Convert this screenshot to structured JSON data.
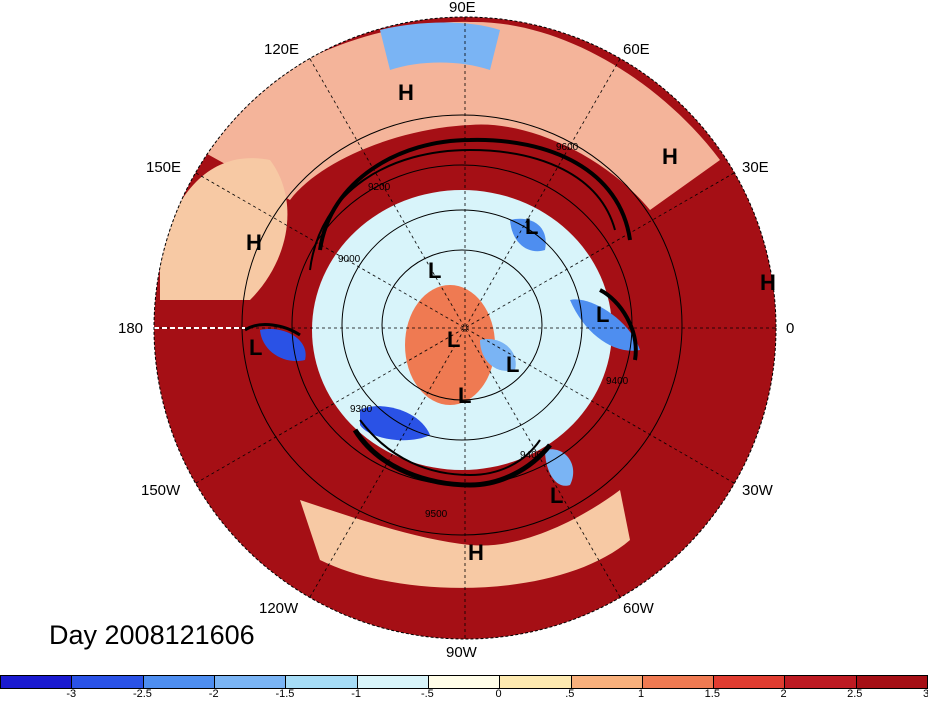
{
  "map": {
    "hemisphere": "northern",
    "projection": "polar stereographic",
    "pole_label": "",
    "contour_values_shown": [
      "9200",
      "9000",
      "9300",
      "9400",
      "9400",
      "9500",
      "9600"
    ],
    "colors": {
      "ocean_hot": "#a50f15",
      "background": "#ffffff"
    }
  },
  "longitude_labels": {
    "top": "90E",
    "lon120e": "120E",
    "lon60e": "60E",
    "lon150e": "150E",
    "lon30e": "30E",
    "left": "180",
    "right": "0",
    "lon150w": "150W",
    "lon30w": "30W",
    "lon120w": "120W",
    "lon60w": "60W",
    "bottom": "90W"
  },
  "pressure_centers": [
    {
      "label": "H",
      "region": "east asia"
    },
    {
      "label": "H",
      "region": "ural"
    },
    {
      "label": "H",
      "region": "siberia east"
    },
    {
      "label": "H",
      "region": "europe edge"
    },
    {
      "label": "H",
      "region": "gulf of mexico"
    },
    {
      "label": "L",
      "region": "aleutian"
    },
    {
      "label": "L",
      "region": "east siberia"
    },
    {
      "label": "L",
      "region": "kara sea"
    },
    {
      "label": "L",
      "region": "scandinavia"
    },
    {
      "label": "L",
      "region": "arctic pole"
    },
    {
      "label": "L",
      "region": "greenland"
    },
    {
      "label": "L",
      "region": "hudson bay"
    },
    {
      "label": "L",
      "region": "north atlantic"
    }
  ],
  "title": "Day 2008121606",
  "colorbar": {
    "colors": [
      "#1a1ad0",
      "#2a52e6",
      "#4e8ef0",
      "#7ab4f4",
      "#a6dcf6",
      "#d8f4fa",
      "#fffde8",
      "#fde9b0",
      "#f8b07c",
      "#ef7a52",
      "#e03c30",
      "#bd1a22",
      "#a50f15"
    ],
    "ticks": [
      "-3",
      "-2.5",
      "-2",
      "-1.5",
      "-1",
      "-.5",
      "0",
      ".5",
      "1",
      "1.5",
      "2",
      "2.5",
      "3"
    ]
  }
}
